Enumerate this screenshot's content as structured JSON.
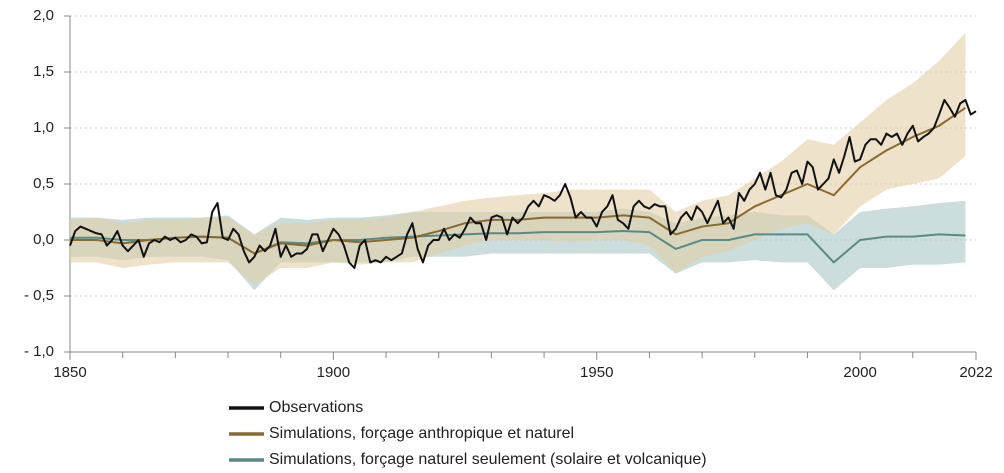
{
  "chart_data": {
    "type": "line",
    "xlim": [
      1850,
      2022
    ],
    "ylim": [
      -1.0,
      2.0
    ],
    "xticks": [
      1850,
      1900,
      1950,
      2000,
      2022
    ],
    "xticks_minor": [
      1860,
      1870,
      1880,
      1890,
      1910,
      1920,
      1930,
      1940,
      1960,
      1970,
      1980,
      1990,
      2010
    ],
    "yticks": [
      {
        "value": -1.0,
        "label": "- 1,0"
      },
      {
        "value": -0.5,
        "label": "- 0,5"
      },
      {
        "value": 0,
        "label": "0,0"
      },
      {
        "value": 0.5,
        "label": "0,5"
      },
      {
        "value": 1.0,
        "label": "1,0"
      },
      {
        "value": 1.5,
        "label": "1,5"
      },
      {
        "value": 2.0,
        "label": "2,0"
      }
    ],
    "grid": true,
    "series": [
      {
        "name": "Observations",
        "color": "#111111",
        "x": [
          1850,
          1851,
          1852,
          1853,
          1854,
          1855,
          1856,
          1857,
          1858,
          1859,
          1860,
          1861,
          1862,
          1863,
          1864,
          1865,
          1866,
          1867,
          1868,
          1869,
          1870,
          1871,
          1872,
          1873,
          1874,
          1875,
          1876,
          1877,
          1878,
          1879,
          1880,
          1881,
          1882,
          1883,
          1884,
          1885,
          1886,
          1887,
          1888,
          1889,
          1890,
          1891,
          1892,
          1893,
          1894,
          1895,
          1896,
          1897,
          1898,
          1899,
          1900,
          1901,
          1902,
          1903,
          1904,
          1905,
          1906,
          1907,
          1908,
          1909,
          1910,
          1911,
          1912,
          1913,
          1914,
          1915,
          1916,
          1917,
          1918,
          1919,
          1920,
          1921,
          1922,
          1923,
          1924,
          1925,
          1926,
          1927,
          1928,
          1929,
          1930,
          1931,
          1932,
          1933,
          1934,
          1935,
          1936,
          1937,
          1938,
          1939,
          1940,
          1941,
          1942,
          1943,
          1944,
          1945,
          1946,
          1947,
          1948,
          1949,
          1950,
          1951,
          1952,
          1953,
          1954,
          1955,
          1956,
          1957,
          1958,
          1959,
          1960,
          1961,
          1962,
          1963,
          1964,
          1965,
          1966,
          1967,
          1968,
          1969,
          1970,
          1971,
          1972,
          1973,
          1974,
          1975,
          1976,
          1977,
          1978,
          1979,
          1980,
          1981,
          1982,
          1983,
          1984,
          1985,
          1986,
          1987,
          1988,
          1989,
          1990,
          1991,
          1992,
          1993,
          1994,
          1995,
          1996,
          1997,
          1998,
          1999,
          2000,
          2001,
          2002,
          2003,
          2004,
          2005,
          2006,
          2007,
          2008,
          2009,
          2010,
          2011,
          2012,
          2013,
          2014,
          2015,
          2016,
          2017,
          2018,
          2019,
          2020,
          2021,
          2022
        ],
        "values": [
          -0.05,
          0.08,
          0.12,
          0.1,
          0.08,
          0.06,
          0.05,
          -0.05,
          0.0,
          0.08,
          -0.05,
          -0.1,
          -0.05,
          0.0,
          -0.15,
          -0.03,
          0.0,
          -0.02,
          0.03,
          0.0,
          0.02,
          -0.02,
          0.0,
          0.05,
          0.03,
          -0.03,
          -0.02,
          0.25,
          0.33,
          0.02,
          0.0,
          0.1,
          0.05,
          -0.1,
          -0.2,
          -0.15,
          -0.05,
          -0.1,
          -0.05,
          0.1,
          -0.15,
          -0.05,
          -0.15,
          -0.12,
          -0.12,
          -0.08,
          0.05,
          0.05,
          -0.1,
          0.0,
          0.1,
          0.05,
          -0.05,
          -0.2,
          -0.25,
          -0.05,
          0.0,
          -0.2,
          -0.18,
          -0.2,
          -0.15,
          -0.18,
          -0.15,
          -0.12,
          0.05,
          0.15,
          -0.08,
          -0.2,
          -0.05,
          0.0,
          0.0,
          0.1,
          0.0,
          0.05,
          0.02,
          0.1,
          0.2,
          0.15,
          0.15,
          0.0,
          0.2,
          0.22,
          0.2,
          0.05,
          0.2,
          0.15,
          0.2,
          0.3,
          0.35,
          0.3,
          0.4,
          0.38,
          0.35,
          0.4,
          0.5,
          0.38,
          0.2,
          0.25,
          0.2,
          0.2,
          0.12,
          0.25,
          0.3,
          0.4,
          0.18,
          0.15,
          0.1,
          0.3,
          0.35,
          0.3,
          0.28,
          0.32,
          0.3,
          0.3,
          0.05,
          0.1,
          0.2,
          0.25,
          0.18,
          0.3,
          0.25,
          0.15,
          0.25,
          0.35,
          0.15,
          0.2,
          0.1,
          0.42,
          0.35,
          0.45,
          0.5,
          0.6,
          0.45,
          0.6,
          0.4,
          0.38,
          0.45,
          0.6,
          0.62,
          0.5,
          0.7,
          0.65,
          0.45,
          0.5,
          0.55,
          0.72,
          0.6,
          0.75,
          0.92,
          0.7,
          0.72,
          0.85,
          0.9,
          0.9,
          0.85,
          0.95,
          0.92,
          0.95,
          0.85,
          0.95,
          1.02,
          0.88,
          0.92,
          0.95,
          1.0,
          1.12,
          1.25,
          1.18,
          1.1,
          1.22,
          1.25,
          1.12,
          1.15
        ]
      },
      {
        "name": "Simulations, forçage anthropique et naturel",
        "color": "#8a6a2e",
        "band_color": "#e3cfa6",
        "x": [
          1850,
          1855,
          1860,
          1865,
          1870,
          1875,
          1880,
          1885,
          1890,
          1895,
          1900,
          1905,
          1910,
          1915,
          1920,
          1925,
          1930,
          1935,
          1940,
          1945,
          1950,
          1955,
          1960,
          1965,
          1970,
          1975,
          1980,
          1985,
          1990,
          1995,
          2000,
          2005,
          2010,
          2015,
          2020
        ],
        "values": [
          0.0,
          0.0,
          -0.03,
          0.0,
          0.02,
          0.03,
          0.02,
          -0.12,
          -0.03,
          -0.05,
          0.0,
          -0.02,
          0.0,
          0.02,
          0.08,
          0.15,
          0.18,
          0.18,
          0.2,
          0.2,
          0.2,
          0.22,
          0.2,
          0.05,
          0.12,
          0.15,
          0.3,
          0.4,
          0.5,
          0.4,
          0.65,
          0.8,
          0.92,
          1.02,
          1.18
        ],
        "upper": [
          0.18,
          0.2,
          0.15,
          0.18,
          0.18,
          0.2,
          0.2,
          0.05,
          0.15,
          0.15,
          0.18,
          0.18,
          0.2,
          0.25,
          0.3,
          0.35,
          0.38,
          0.4,
          0.42,
          0.45,
          0.45,
          0.45,
          0.45,
          0.25,
          0.35,
          0.4,
          0.55,
          0.7,
          0.9,
          0.85,
          1.05,
          1.25,
          1.4,
          1.6,
          1.85
        ],
        "lower": [
          -0.2,
          -0.2,
          -0.25,
          -0.22,
          -0.2,
          -0.2,
          -0.2,
          -0.4,
          -0.25,
          -0.25,
          -0.2,
          -0.22,
          -0.2,
          -0.2,
          -0.12,
          -0.05,
          0.0,
          0.0,
          0.0,
          -0.02,
          0.0,
          0.0,
          -0.05,
          -0.3,
          -0.15,
          -0.1,
          0.0,
          0.1,
          0.15,
          0.05,
          0.3,
          0.45,
          0.5,
          0.55,
          0.75
        ]
      },
      {
        "name": "Simulations, forçage naturel seulement (solaire et volcanique)",
        "color": "#5a8a86",
        "band_color": "#a9c6c4",
        "x": [
          1850,
          1855,
          1860,
          1865,
          1870,
          1875,
          1880,
          1885,
          1890,
          1895,
          1900,
          1905,
          1910,
          1915,
          1920,
          1925,
          1930,
          1935,
          1940,
          1945,
          1950,
          1955,
          1960,
          1965,
          1970,
          1975,
          1980,
          1985,
          1990,
          1995,
          2000,
          2005,
          2010,
          2015,
          2020
        ],
        "values": [
          0.02,
          0.02,
          0.0,
          0.0,
          0.02,
          0.03,
          0.02,
          -0.12,
          -0.02,
          -0.03,
          0.0,
          0.0,
          0.02,
          0.03,
          0.04,
          0.05,
          0.06,
          0.06,
          0.07,
          0.07,
          0.07,
          0.08,
          0.07,
          -0.08,
          0.0,
          0.0,
          0.05,
          0.05,
          0.05,
          -0.2,
          0.0,
          0.03,
          0.03,
          0.05,
          0.04
        ],
        "upper": [
          0.2,
          0.2,
          0.18,
          0.2,
          0.2,
          0.2,
          0.22,
          0.05,
          0.2,
          0.18,
          0.2,
          0.2,
          0.22,
          0.25,
          0.25,
          0.25,
          0.25,
          0.25,
          0.25,
          0.25,
          0.25,
          0.28,
          0.25,
          0.15,
          0.2,
          0.22,
          0.25,
          0.22,
          0.22,
          0.05,
          0.25,
          0.28,
          0.3,
          0.33,
          0.35
        ],
        "lower": [
          -0.15,
          -0.15,
          -0.18,
          -0.15,
          -0.15,
          -0.15,
          -0.18,
          -0.45,
          -0.2,
          -0.2,
          -0.2,
          -0.2,
          -0.2,
          -0.15,
          -0.15,
          -0.15,
          -0.12,
          -0.12,
          -0.12,
          -0.12,
          -0.12,
          -0.12,
          -0.12,
          -0.3,
          -0.2,
          -0.2,
          -0.18,
          -0.2,
          -0.2,
          -0.45,
          -0.25,
          -0.25,
          -0.22,
          -0.22,
          -0.2
        ]
      }
    ]
  }
}
